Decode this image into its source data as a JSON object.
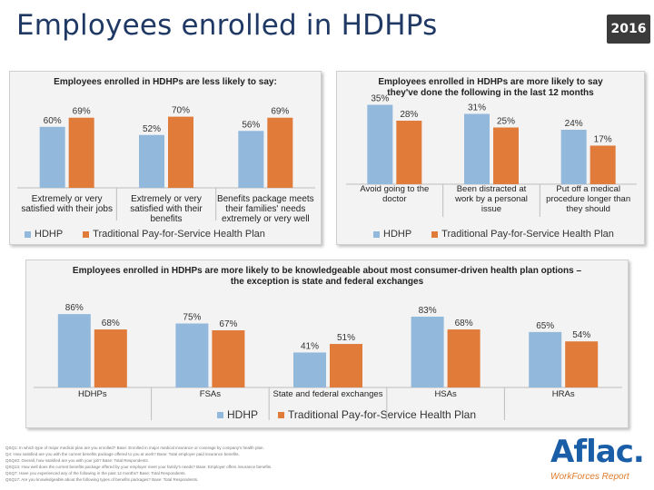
{
  "header": {
    "title": "Employees enrolled in HDHPs",
    "year": "2016"
  },
  "colors": {
    "hdhp": "#92b8dc",
    "traditional": "#e07b39",
    "title": "#1f3864"
  },
  "legend": {
    "hdhp": "HDHP",
    "traditional": "Traditional Pay-for-Service Health Plan"
  },
  "chart_data": [
    {
      "type": "bar",
      "title": "Employees enrolled in HDHPs are less likely to say:",
      "categories": [
        [
          "Extremely or very",
          "satisfied with their jobs"
        ],
        [
          "Extremely or very",
          "satisfied with their",
          "benefits"
        ],
        [
          "Benefits package meets",
          "their families' needs",
          "extremely or very well"
        ]
      ],
      "series": [
        {
          "name": "HDHP",
          "values": [
            60,
            52,
            56
          ],
          "labels": [
            "60%",
            "52%",
            "56%"
          ]
        },
        {
          "name": "Traditional Pay-for-Service Health Plan",
          "values": [
            69,
            70,
            69
          ],
          "labels": [
            "69%",
            "70%",
            "69%"
          ]
        }
      ],
      "ylim": [
        0,
        100
      ],
      "grid": false,
      "legend": "bottom"
    },
    {
      "type": "bar",
      "title": "Employees enrolled in HDHPs are more likely to say they've done the following in the last 12 months",
      "title_lines": [
        "Employees enrolled in HDHPs are more likely to say",
        "they've done the following in the last 12 months"
      ],
      "categories": [
        [
          "Avoid going to the",
          "doctor"
        ],
        [
          "Been distracted at",
          "work by a personal",
          "issue"
        ],
        [
          "Put off a medical",
          "procedure longer than",
          "they should"
        ]
      ],
      "series": [
        {
          "name": "HDHP",
          "values": [
            35,
            31,
            24
          ],
          "labels": [
            "35%",
            "31%",
            "24%"
          ]
        },
        {
          "name": "Traditional Pay-for-Service Health Plan",
          "values": [
            28,
            25,
            17
          ],
          "labels": [
            "28%",
            "25%",
            "17%"
          ]
        }
      ],
      "ylim": [
        0,
        60
      ],
      "grid": false,
      "legend": "bottom"
    },
    {
      "type": "bar",
      "title": "Employees enrolled in HDHPs are more likely to be knowledgeable about most consumer-driven health plan options – the exception is state and federal exchanges",
      "title_lines": [
        "Employees enrolled in HDHPs are more likely to be knowledgeable about most consumer-driven health plan options –",
        "the exception is state and federal exchanges"
      ],
      "categories": [
        [
          "HDHPs"
        ],
        [
          "FSAs"
        ],
        [
          "State and federal exchanges"
        ],
        [
          "HSAs"
        ],
        [
          "HRAs"
        ]
      ],
      "series": [
        {
          "name": "HDHP",
          "values": [
            86,
            75,
            41,
            83,
            65
          ],
          "labels": [
            "86%",
            "75%",
            "41%",
            "83%",
            "65%"
          ]
        },
        {
          "name": "Traditional Pay-for-Service Health Plan",
          "values": [
            68,
            67,
            51,
            68,
            54
          ],
          "labels": [
            "68%",
            "67%",
            "51%",
            "68%",
            "54%"
          ]
        }
      ],
      "ylim": [
        0,
        100
      ],
      "grid": false,
      "legend": "bottom"
    }
  ],
  "footnotes": [
    "QSQ1: In which type of major medical plan are you enrolled? Base: Enrolled in major medical insurance or coverage by company's health plan.",
    "Q4: How satisfied are you with the current benefits package offered to you at work? Base: Total employer paid insurance benefits.",
    "QSQ40: Overall, how satisfied are you with your job? Base: Total Respondents.",
    "QSQ13: How well does the current benefits package offered by your employer meet your family's needs? Base: Employer offers insurance benefits.",
    "QSQ7: Have you experienced any of the following in the past 12 months? Base: Total Respondents.",
    "QSQ17: Are you knowledgeable about the following types of benefits packages? Base: Total Respondents."
  ],
  "logo": {
    "brand": "Aflac.",
    "subtitle": "WorkForces Report"
  }
}
